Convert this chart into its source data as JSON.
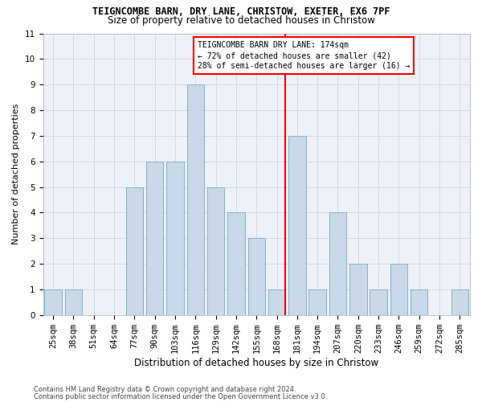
{
  "title": "TEIGNCOMBE BARN, DRY LANE, CHRISTOW, EXETER, EX6 7PF",
  "subtitle": "Size of property relative to detached houses in Christow",
  "xlabel": "Distribution of detached houses by size in Christow",
  "ylabel": "Number of detached properties",
  "footer1": "Contains HM Land Registry data © Crown copyright and database right 2024.",
  "footer2": "Contains public sector information licensed under the Open Government Licence v3.0.",
  "categories": [
    "25sqm",
    "38sqm",
    "51sqm",
    "64sqm",
    "77sqm",
    "90sqm",
    "103sqm",
    "116sqm",
    "129sqm",
    "142sqm",
    "155sqm",
    "168sqm",
    "181sqm",
    "194sqm",
    "207sqm",
    "220sqm",
    "233sqm",
    "246sqm",
    "259sqm",
    "272sqm",
    "285sqm"
  ],
  "values": [
    1,
    1,
    0,
    0,
    5,
    6,
    6,
    9,
    5,
    4,
    3,
    1,
    7,
    1,
    4,
    2,
    1,
    2,
    1,
    0,
    1
  ],
  "bar_color": "#c9d9e8",
  "bar_edge_color": "#7fafd0",
  "grid_color": "#d0d8e8",
  "background_color": "#eef2f8",
  "red_line_index": 11,
  "annotation_title": "TEIGNCOMBE BARN DRY LANE: 174sqm",
  "annotation_line2": "← 72% of detached houses are smaller (42)",
  "annotation_line3": "28% of semi-detached houses are larger (16) →",
  "ylim": [
    0,
    11
  ],
  "yticks": [
    0,
    1,
    2,
    3,
    4,
    5,
    6,
    7,
    8,
    9,
    10,
    11
  ],
  "title_fontsize": 8.5,
  "subtitle_fontsize": 8.5,
  "xlabel_fontsize": 8.5,
  "ylabel_fontsize": 8,
  "tick_fontsize": 7.5,
  "annot_fontsize": 7,
  "footer_fontsize": 6
}
